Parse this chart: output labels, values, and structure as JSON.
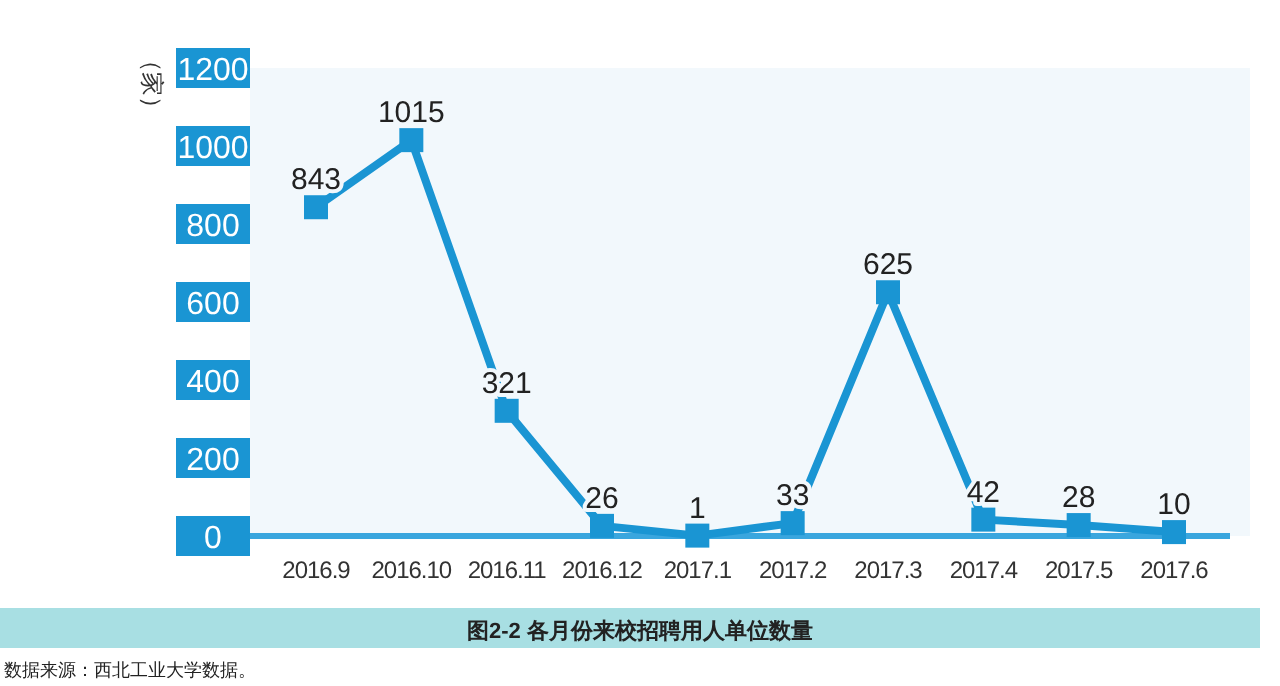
{
  "chart_data": {
    "type": "line",
    "title": "图2-2 各月份来校招聘用人单位数量",
    "ylabel": "（家）",
    "annotations": [
      "数据来源：西北工业大学数据。"
    ],
    "categories": [
      "2016.9",
      "2016.10",
      "2016.11",
      "2016.12",
      "2017.1",
      "2017.2",
      "2017.3",
      "2017.4",
      "2017.5",
      "2017.6"
    ],
    "series": [
      {
        "color": "#1a95d3",
        "values": [
          843,
          1015,
          321,
          26,
          1,
          33,
          625,
          42,
          28,
          10
        ]
      }
    ],
    "ylim": [
      0,
      1200
    ],
    "yticks": [
      0,
      200,
      400,
      600,
      800,
      1000,
      1200
    ],
    "data_labels": true,
    "marker": "square",
    "line_style": "solid",
    "grid": false
  }
}
